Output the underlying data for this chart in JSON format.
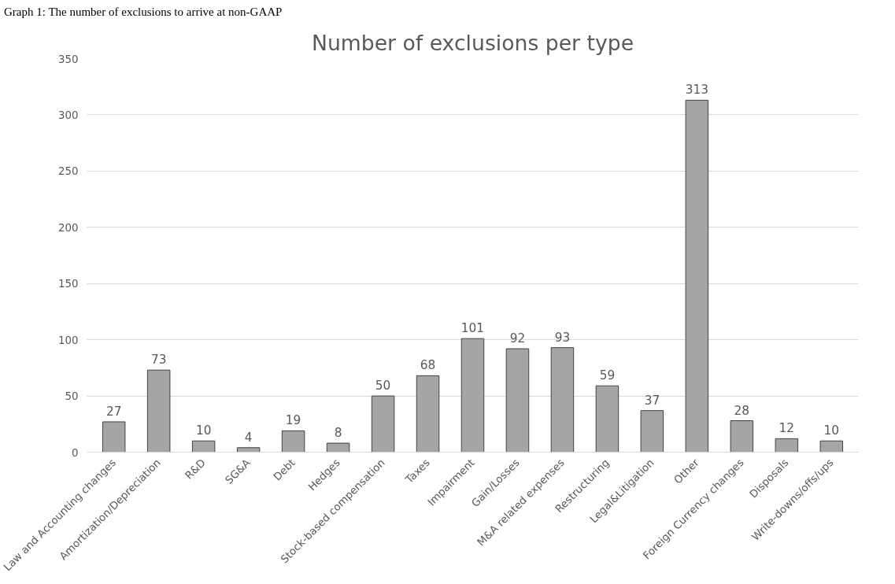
{
  "chart_data": {
    "type": "bar",
    "title": "Number of exclusions per type",
    "categories": [
      "Law and Accounting changes",
      "Amortization/Depreciation",
      "R&D",
      "SG&A",
      "Debt",
      "Hedges",
      "Stock-based compensation",
      "Taxes",
      "Impairment",
      "Gain/Losses",
      "M&A related expenses",
      "Restructuring",
      "Legal&Litigation",
      "Other",
      "Foreign Currency changes",
      "Disposals",
      "Write-downs/offs/ups"
    ],
    "values": [
      27,
      73,
      10,
      4,
      19,
      8,
      50,
      68,
      101,
      92,
      93,
      59,
      37,
      313,
      28,
      12,
      10
    ],
    "color": "#a5a5a5",
    "ylim": [
      0,
      350
    ],
    "yticks": [
      0,
      50,
      100,
      150,
      200,
      250,
      300,
      350
    ],
    "grid": "y",
    "data_labels": true,
    "annotations": [
      "Graph 1: The number of exclusions to arrive at non-GAAP"
    ]
  }
}
